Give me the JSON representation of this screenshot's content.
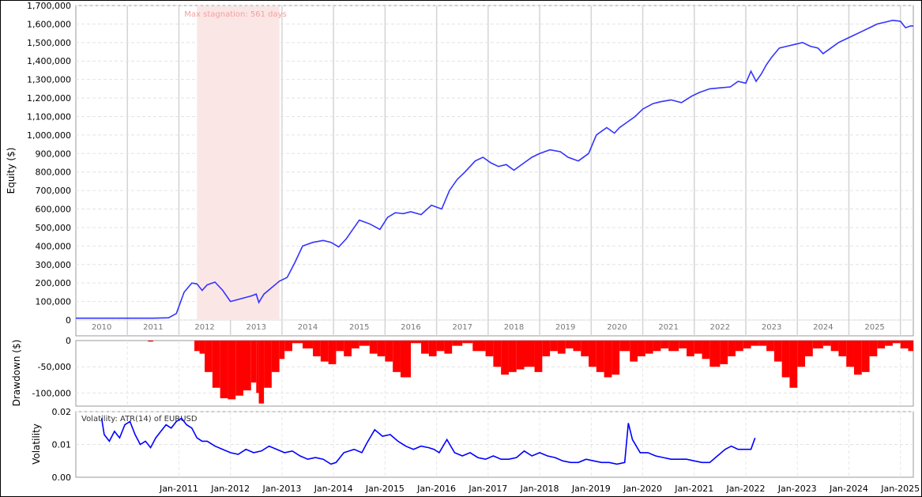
{
  "chart_data": [
    {
      "type": "line",
      "panel": "equity",
      "ylabel": "Equity ($)",
      "ylim": [
        0,
        1700000
      ],
      "yticks": [
        0,
        100000,
        200000,
        300000,
        400000,
        500000,
        600000,
        700000,
        800000,
        900000,
        1000000,
        1100000,
        1200000,
        1300000,
        1400000,
        1500000,
        1600000,
        1700000
      ],
      "ytick_labels": [
        "0",
        "100,000",
        "200,000",
        "300,000",
        "400,000",
        "500,000",
        "600,000",
        "700,000",
        "800,000",
        "900,000",
        "1,000,000",
        "1,100,000",
        "1,200,000",
        "1,300,000",
        "1,400,000",
        "1,500,000",
        "1,600,000",
        "1,700,000"
      ],
      "xlim": [
        2009.5,
        2025.75
      ],
      "year_labels": [
        "2010",
        "2011",
        "2012",
        "2013",
        "2014",
        "2015",
        "2016",
        "2017",
        "2018",
        "2019",
        "2020",
        "2021",
        "2022",
        "2023",
        "2024",
        "2025"
      ],
      "grid": true,
      "annotation": {
        "text": "Max stagnation: 561 days",
        "x_start": 2011.85,
        "x_end": 2013.45
      },
      "series": [
        {
          "color": "#3333ff",
          "x": [
            2009.5,
            2010.0,
            2010.5,
            2011.0,
            2011.3,
            2011.45,
            2011.6,
            2011.75,
            2011.85,
            2011.95,
            2012.05,
            2012.2,
            2012.35,
            2012.5,
            2012.7,
            2012.9,
            2013.0,
            2013.05,
            2013.15,
            2013.3,
            2013.45,
            2013.6,
            2013.75,
            2013.9,
            2014.1,
            2014.3,
            2014.45,
            2014.6,
            2014.75,
            2014.85,
            2015.0,
            2015.2,
            2015.4,
            2015.55,
            2015.7,
            2015.85,
            2016.0,
            2016.2,
            2016.4,
            2016.6,
            2016.75,
            2016.9,
            2017.05,
            2017.25,
            2017.4,
            2017.55,
            2017.7,
            2017.85,
            2018.0,
            2018.2,
            2018.35,
            2018.5,
            2018.7,
            2018.9,
            2019.05,
            2019.25,
            2019.45,
            2019.6,
            2019.8,
            2019.95,
            2020.05,
            2020.2,
            2020.35,
            2020.5,
            2020.7,
            2020.85,
            2021.05,
            2021.25,
            2021.45,
            2021.6,
            2021.8,
            2022.0,
            2022.2,
            2022.35,
            2022.5,
            2022.6,
            2022.7,
            2022.8,
            2022.9,
            2023.0,
            2023.15,
            2023.3,
            2023.45,
            2023.6,
            2023.75,
            2023.9,
            2024.0,
            2024.1,
            2024.3,
            2024.45,
            2024.6,
            2024.75,
            2024.9,
            2025.05,
            2025.2,
            2025.35,
            2025.5,
            2025.6,
            2025.7,
            2025.75
          ],
          "y": [
            10000,
            10000,
            10000,
            10000,
            12000,
            35000,
            150000,
            200000,
            195000,
            160000,
            190000,
            205000,
            160000,
            100000,
            115000,
            130000,
            140000,
            95000,
            140000,
            175000,
            210000,
            230000,
            310000,
            400000,
            420000,
            430000,
            420000,
            395000,
            440000,
            480000,
            540000,
            520000,
            490000,
            555000,
            580000,
            575000,
            585000,
            570000,
            620000,
            600000,
            700000,
            760000,
            800000,
            860000,
            880000,
            850000,
            830000,
            840000,
            810000,
            850000,
            880000,
            900000,
            920000,
            910000,
            880000,
            860000,
            900000,
            1000000,
            1040000,
            1010000,
            1040000,
            1070000,
            1100000,
            1140000,
            1170000,
            1180000,
            1190000,
            1175000,
            1210000,
            1230000,
            1250000,
            1255000,
            1260000,
            1290000,
            1280000,
            1345000,
            1290000,
            1330000,
            1380000,
            1420000,
            1470000,
            1480000,
            1490000,
            1500000,
            1480000,
            1470000,
            1440000,
            1460000,
            1500000,
            1520000,
            1540000,
            1560000,
            1580000,
            1600000,
            1610000,
            1620000,
            1615000,
            1580000,
            1590000,
            1590000
          ]
        }
      ]
    },
    {
      "type": "bar",
      "panel": "drawdown",
      "ylabel": "Drawdown ($)",
      "ylim": [
        -125000,
        0
      ],
      "yticks": [
        0,
        -50000,
        -100000
      ],
      "ytick_labels": [
        "0",
        "-50,000",
        "-100,000"
      ],
      "grid": true,
      "color": "#ff0000",
      "x": [
        2009.5,
        2010.9,
        2011.0,
        2011.8,
        2011.9,
        2012.0,
        2012.15,
        2012.3,
        2012.45,
        2012.6,
        2012.75,
        2012.9,
        2013.0,
        2013.05,
        2013.15,
        2013.3,
        2013.45,
        2013.55,
        2013.7,
        2013.9,
        2014.1,
        2014.25,
        2014.4,
        2014.55,
        2014.7,
        2014.85,
        2015.0,
        2015.2,
        2015.35,
        2015.5,
        2015.65,
        2015.8,
        2016.0,
        2016.2,
        2016.35,
        2016.5,
        2016.65,
        2016.8,
        2017.0,
        2017.2,
        2017.45,
        2017.6,
        2017.75,
        2017.9,
        2018.05,
        2018.2,
        2018.4,
        2018.55,
        2018.7,
        2018.85,
        2019.0,
        2019.15,
        2019.3,
        2019.45,
        2019.6,
        2019.75,
        2019.9,
        2020.05,
        2020.25,
        2020.4,
        2020.55,
        2020.7,
        2020.85,
        2021.0,
        2021.2,
        2021.35,
        2021.5,
        2021.65,
        2021.8,
        2022.0,
        2022.15,
        2022.3,
        2022.45,
        2022.6,
        2022.75,
        2022.9,
        2023.05,
        2023.2,
        2023.35,
        2023.5,
        2023.65,
        2023.8,
        2024.0,
        2024.15,
        2024.3,
        2024.45,
        2024.6,
        2024.75,
        2024.9,
        2025.05,
        2025.2,
        2025.35,
        2025.5,
        2025.65,
        2025.75
      ],
      "values": [
        0,
        -2000,
        0,
        -20000,
        -25000,
        -60000,
        -90000,
        -110000,
        -112000,
        -105000,
        -95000,
        -80000,
        -100000,
        -120000,
        -90000,
        -60000,
        -35000,
        -20000,
        -5000,
        -15000,
        -30000,
        -40000,
        -45000,
        -20000,
        -30000,
        -15000,
        -10000,
        -25000,
        -30000,
        -40000,
        -60000,
        -70000,
        -5000,
        -25000,
        -30000,
        -20000,
        -25000,
        -10000,
        -5000,
        -20000,
        -30000,
        -50000,
        -65000,
        -60000,
        -55000,
        -50000,
        -60000,
        -30000,
        -20000,
        -25000,
        -15000,
        -20000,
        -30000,
        -50000,
        -60000,
        -70000,
        -65000,
        -20000,
        -40000,
        -30000,
        -25000,
        -20000,
        -15000,
        -20000,
        -15000,
        -30000,
        -25000,
        -35000,
        -50000,
        -45000,
        -30000,
        -20000,
        -15000,
        -10000,
        -10000,
        -20000,
        -40000,
        -70000,
        -90000,
        -50000,
        -30000,
        -15000,
        -10000,
        -20000,
        -30000,
        -50000,
        -65000,
        -60000,
        -30000,
        -15000,
        -10000,
        -5000,
        -15000,
        -20000,
        -40000
      ]
    },
    {
      "type": "line",
      "panel": "volatility",
      "ylabel": "Volatility",
      "ylim": [
        0,
        0.02
      ],
      "yticks": [
        0,
        0.01,
        0.02
      ],
      "ytick_labels": [
        "0.00",
        "0.01",
        "0.02"
      ],
      "grid": true,
      "annotation": {
        "text": "Volatility: ATR(14) of EURUSD"
      },
      "xticks": [
        "Jan-2011",
        "Jan-2012",
        "Jan-2013",
        "Jan-2014",
        "Jan-2015",
        "Jan-2016",
        "Jan-2017",
        "Jan-2018",
        "Jan-2019",
        "Jan-2020",
        "Jan-2021",
        "Jan-2022",
        "Jan-2023",
        "Jan-2024",
        "Jan-2025"
      ],
      "series": [
        {
          "color": "#0000ff",
          "x": [
            2010.0,
            2010.05,
            2010.15,
            2010.25,
            2010.35,
            2010.45,
            2010.55,
            2010.65,
            2010.75,
            2010.85,
            2010.95,
            2011.05,
            2011.15,
            2011.25,
            2011.35,
            2011.45,
            2011.55,
            2011.65,
            2011.75,
            2011.85,
            2011.95,
            2012.05,
            2012.2,
            2012.35,
            2012.5,
            2012.65,
            2012.8,
            2012.95,
            2013.1,
            2013.25,
            2013.4,
            2013.55,
            2013.7,
            2013.85,
            2014.0,
            2014.15,
            2014.3,
            2014.45,
            2014.55,
            2014.7,
            2014.9,
            2015.05,
            2015.15,
            2015.3,
            2015.45,
            2015.6,
            2015.75,
            2015.9,
            2016.05,
            2016.2,
            2016.35,
            2016.45,
            2016.55,
            2016.7,
            2016.85,
            2017.0,
            2017.15,
            2017.3,
            2017.45,
            2017.6,
            2017.75,
            2017.9,
            2018.05,
            2018.2,
            2018.35,
            2018.5,
            2018.65,
            2018.8,
            2018.95,
            2019.1,
            2019.25,
            2019.4,
            2019.55,
            2019.7,
            2019.85,
            2020.0,
            2020.15,
            2020.22,
            2020.3,
            2020.45,
            2020.6,
            2020.75,
            2020.9,
            2021.05,
            2021.2,
            2021.35,
            2021.5,
            2021.65,
            2021.8,
            2021.95,
            2022.1,
            2022.22,
            2022.35,
            2022.5,
            2022.6,
            2022.68
          ],
          "y": [
            0.018,
            0.013,
            0.011,
            0.014,
            0.012,
            0.016,
            0.017,
            0.013,
            0.01,
            0.011,
            0.009,
            0.012,
            0.014,
            0.016,
            0.015,
            0.017,
            0.018,
            0.016,
            0.015,
            0.012,
            0.011,
            0.011,
            0.0095,
            0.0085,
            0.0075,
            0.007,
            0.0085,
            0.0075,
            0.008,
            0.0095,
            0.0085,
            0.0075,
            0.008,
            0.0065,
            0.0055,
            0.006,
            0.0055,
            0.004,
            0.0045,
            0.0075,
            0.0085,
            0.0075,
            0.0105,
            0.0145,
            0.0125,
            0.013,
            0.011,
            0.0095,
            0.0085,
            0.0095,
            0.009,
            0.0085,
            0.0075,
            0.0115,
            0.0075,
            0.0065,
            0.0075,
            0.006,
            0.0055,
            0.0065,
            0.0055,
            0.0055,
            0.006,
            0.008,
            0.0065,
            0.0075,
            0.0065,
            0.006,
            0.005,
            0.0045,
            0.0045,
            0.0055,
            0.005,
            0.0045,
            0.0045,
            0.004,
            0.0045,
            0.0165,
            0.0115,
            0.0075,
            0.0075,
            0.0065,
            0.006,
            0.0055,
            0.0055,
            0.0055,
            0.005,
            0.0045,
            0.0045,
            0.0065,
            0.0085,
            0.0095,
            0.0085,
            0.0085,
            0.0085,
            0.012
          ]
        }
      ]
    }
  ]
}
